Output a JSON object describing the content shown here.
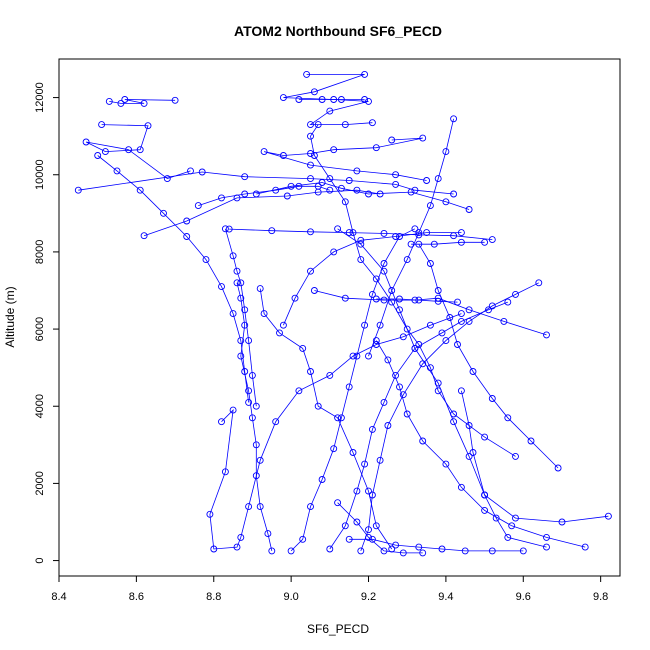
{
  "chart_data": {
    "type": "line",
    "title": "ATOM2 Northbound SF6_PECD",
    "xlabel": "SF6_PECD",
    "ylabel": "Altitude (m)",
    "xlim": [
      8.4,
      9.85
    ],
    "ylim": [
      -400,
      13000
    ],
    "x_ticks": [
      8.4,
      8.6,
      8.8,
      9.0,
      9.2,
      9.4,
      9.6,
      9.8
    ],
    "x_tick_labels": [
      "8.4",
      "8.6",
      "8.8",
      "9.0",
      "9.2",
      "9.4",
      "9.6",
      "9.8"
    ],
    "y_ticks": [
      0,
      2000,
      4000,
      6000,
      8000,
      10000,
      12000
    ],
    "y_tick_labels": [
      "0",
      "2000",
      "4000",
      "6000",
      "8000",
      "10000",
      "12000"
    ],
    "grid": false,
    "marker": "open-circle",
    "colors": {
      "series": "#0000ff",
      "axis": "#000000"
    },
    "series": [
      {
        "points": [
          [
            8.53,
            11900
          ],
          [
            8.56,
            11850
          ],
          [
            8.62,
            11850
          ],
          [
            8.57,
            11950
          ],
          [
            8.7,
            11930
          ]
        ]
      },
      {
        "points": [
          [
            8.51,
            11300
          ],
          [
            8.63,
            11270
          ],
          [
            8.61,
            10650
          ],
          [
            8.52,
            10600
          ],
          [
            8.47,
            10850
          ],
          [
            8.58,
            10650
          ],
          [
            8.68,
            9900
          ],
          [
            8.74,
            10100
          ]
        ]
      },
      {
        "points": [
          [
            8.45,
            9600
          ],
          [
            8.77,
            10070
          ],
          [
            8.88,
            9950
          ],
          [
            9.05,
            9900
          ],
          [
            9.15,
            9850
          ],
          [
            9.27,
            9750
          ],
          [
            9.32,
            9600
          ],
          [
            9.42,
            9500
          ]
        ]
      },
      {
        "points": [
          [
            8.62,
            8420
          ],
          [
            8.73,
            8800
          ],
          [
            8.86,
            9400
          ],
          [
            8.99,
            9450
          ],
          [
            9.07,
            9550
          ],
          [
            9.17,
            9600
          ],
          [
            9.23,
            9500
          ]
        ]
      },
      {
        "points": [
          [
            8.84,
            8590
          ],
          [
            8.95,
            8550
          ],
          [
            9.05,
            8520
          ],
          [
            9.15,
            8500
          ],
          [
            9.24,
            8480
          ],
          [
            9.33,
            8440
          ],
          [
            9.42,
            8420
          ],
          [
            9.52,
            8320
          ]
        ]
      },
      {
        "points": [
          [
            8.92,
            7050
          ],
          [
            8.93,
            6400
          ],
          [
            8.97,
            5900
          ],
          [
            9.03,
            5500
          ],
          [
            9.05,
            4900
          ],
          [
            9.07,
            4000
          ],
          [
            9.12,
            3700
          ],
          [
            9.16,
            2800
          ],
          [
            9.2,
            1800
          ],
          [
            9.22,
            900
          ],
          [
            9.26,
            300
          ]
        ]
      },
      {
        "points": [
          [
            8.82,
            3600
          ],
          [
            8.85,
            3900
          ],
          [
            8.83,
            2300
          ],
          [
            8.79,
            1200
          ],
          [
            8.8,
            300
          ],
          [
            8.86,
            350
          ],
          [
            8.87,
            600
          ],
          [
            8.89,
            1400
          ],
          [
            8.92,
            2600
          ],
          [
            8.96,
            3600
          ],
          [
            9.02,
            4400
          ],
          [
            9.1,
            4800
          ],
          [
            9.16,
            5300
          ],
          [
            9.22,
            5600
          ],
          [
            9.29,
            5800
          ],
          [
            9.36,
            6100
          ],
          [
            9.44,
            6400
          ]
        ]
      },
      {
        "points": [
          [
            9.58,
            2700
          ],
          [
            9.5,
            3200
          ],
          [
            9.42,
            3800
          ],
          [
            9.38,
            4400
          ],
          [
            9.36,
            5000
          ],
          [
            9.33,
            5600
          ],
          [
            9.3,
            6000
          ],
          [
            9.26,
            6700
          ],
          [
            9.22,
            7300
          ],
          [
            9.18,
            7800
          ],
          [
            9.16,
            8500
          ],
          [
            9.14,
            9300
          ],
          [
            9.1,
            9900
          ],
          [
            9.06,
            10500
          ],
          [
            9.05,
            11000
          ],
          [
            9.07,
            11300
          ]
        ]
      },
      {
        "points": [
          [
            9.66,
            5850
          ],
          [
            9.55,
            6200
          ],
          [
            9.46,
            6500
          ],
          [
            9.38,
            6800
          ],
          [
            9.32,
            6750
          ],
          [
            9.24,
            6750
          ],
          [
            9.14,
            6800
          ],
          [
            9.06,
            7000
          ]
        ]
      },
      {
        "points": [
          [
            9.76,
            350
          ],
          [
            9.66,
            600
          ],
          [
            9.57,
            900
          ],
          [
            9.5,
            1300
          ],
          [
            9.44,
            1900
          ],
          [
            9.4,
            2500
          ],
          [
            9.34,
            3100
          ],
          [
            9.3,
            3800
          ],
          [
            9.28,
            4500
          ],
          [
            9.25,
            5200
          ],
          [
            9.22,
            5700
          ]
        ]
      },
      {
        "points": [
          [
            9.82,
            1150
          ],
          [
            9.7,
            1000
          ],
          [
            9.58,
            1100
          ],
          [
            9.5,
            1700
          ],
          [
            9.46,
            2700
          ],
          [
            9.42,
            3600
          ],
          [
            9.38,
            4600
          ],
          [
            9.32,
            5500
          ],
          [
            9.28,
            6500
          ],
          [
            9.24,
            7500
          ],
          [
            9.18,
            8200
          ],
          [
            9.12,
            8600
          ]
        ]
      },
      {
        "points": [
          [
            9.69,
            2400
          ],
          [
            9.62,
            3100
          ],
          [
            9.56,
            3700
          ],
          [
            9.52,
            4200
          ],
          [
            9.47,
            4900
          ],
          [
            9.43,
            5600
          ],
          [
            9.41,
            6300
          ],
          [
            9.38,
            7000
          ],
          [
            9.36,
            7700
          ],
          [
            9.33,
            8200
          ]
        ]
      },
      {
        "points": [
          [
            9.0,
            250
          ],
          [
            9.03,
            550
          ],
          [
            9.05,
            1400
          ],
          [
            9.08,
            2100
          ],
          [
            9.11,
            2900
          ],
          [
            9.13,
            3700
          ],
          [
            9.15,
            4500
          ],
          [
            9.17,
            5300
          ],
          [
            9.19,
            6100
          ],
          [
            9.21,
            6900
          ],
          [
            9.24,
            7700
          ],
          [
            9.28,
            8400
          ],
          [
            9.32,
            8600
          ]
        ]
      },
      {
        "points": [
          [
            9.42,
            11450
          ],
          [
            9.4,
            10600
          ],
          [
            9.38,
            9900
          ],
          [
            9.36,
            9200
          ],
          [
            9.33,
            8500
          ],
          [
            9.3,
            7800
          ],
          [
            9.26,
            7000
          ],
          [
            9.23,
            6100
          ],
          [
            9.2,
            5300
          ]
        ]
      },
      {
        "points": [
          [
            9.04,
            12600
          ],
          [
            9.19,
            12600
          ],
          [
            9.06,
            12150
          ],
          [
            8.98,
            12000
          ],
          [
            9.11,
            11950
          ],
          [
            9.2,
            11900
          ],
          [
            9.1,
            11650
          ],
          [
            9.05,
            11300
          ],
          [
            9.14,
            11300
          ],
          [
            9.21,
            11350
          ]
        ]
      },
      {
        "points": [
          [
            9.26,
            10900
          ],
          [
            9.34,
            10950
          ],
          [
            9.22,
            10700
          ],
          [
            9.11,
            10650
          ],
          [
            9.05,
            10550
          ],
          [
            8.98,
            10500
          ],
          [
            8.93,
            10600
          ],
          [
            9.05,
            10250
          ],
          [
            9.17,
            10100
          ],
          [
            9.27,
            10000
          ],
          [
            9.35,
            9850
          ]
        ]
      },
      {
        "points": [
          [
            8.91,
            9500
          ],
          [
            9.0,
            9700
          ],
          [
            9.08,
            9800
          ],
          [
            9.13,
            9650
          ],
          [
            9.2,
            9500
          ],
          [
            9.31,
            9550
          ],
          [
            9.4,
            9300
          ],
          [
            9.46,
            9100
          ]
        ]
      },
      {
        "points": [
          [
            8.98,
            6100
          ],
          [
            9.01,
            6800
          ],
          [
            9.05,
            7500
          ],
          [
            9.11,
            8000
          ],
          [
            9.18,
            8300
          ],
          [
            9.27,
            8400
          ],
          [
            9.35,
            8500
          ],
          [
            9.44,
            8500
          ]
        ]
      },
      {
        "points": [
          [
            9.56,
            6700
          ],
          [
            9.51,
            6500
          ],
          [
            9.44,
            6200
          ],
          [
            9.39,
            5900
          ],
          [
            9.32,
            5500
          ],
          [
            9.27,
            4800
          ],
          [
            9.24,
            4100
          ],
          [
            9.21,
            3400
          ],
          [
            9.19,
            2500
          ],
          [
            9.17,
            1800
          ],
          [
            9.14,
            900
          ],
          [
            9.1,
            300
          ]
        ]
      },
      {
        "points": [
          [
            9.64,
            7200
          ],
          [
            9.58,
            6900
          ],
          [
            9.52,
            6600
          ],
          [
            9.46,
            6200
          ],
          [
            9.4,
            5700
          ],
          [
            9.34,
            5100
          ],
          [
            9.29,
            4300
          ],
          [
            9.25,
            3500
          ],
          [
            9.23,
            2600
          ],
          [
            9.21,
            1700
          ],
          [
            9.2,
            800
          ],
          [
            9.18,
            250
          ]
        ]
      },
      {
        "points": [
          [
            8.86,
            7200
          ],
          [
            8.87,
            6800
          ],
          [
            8.88,
            6100
          ],
          [
            8.87,
            5300
          ],
          [
            8.89,
            4400
          ],
          [
            8.9,
            3700
          ],
          [
            8.91,
            3000
          ],
          [
            8.91,
            2200
          ],
          [
            8.92,
            1400
          ],
          [
            8.94,
            700
          ],
          [
            8.95,
            250
          ]
        ]
      },
      {
        "points": [
          [
            8.83,
            8600
          ],
          [
            8.85,
            7900
          ],
          [
            8.86,
            7500
          ],
          [
            8.87,
            7200
          ],
          [
            8.88,
            6500
          ],
          [
            8.89,
            5700
          ],
          [
            8.9,
            4800
          ],
          [
            8.91,
            4000
          ]
        ]
      },
      {
        "points": [
          [
            8.5,
            10500
          ],
          [
            8.55,
            10100
          ],
          [
            8.61,
            9600
          ],
          [
            8.67,
            9000
          ],
          [
            8.73,
            8400
          ],
          [
            8.78,
            7800
          ],
          [
            8.82,
            7100
          ],
          [
            8.85,
            6400
          ],
          [
            8.87,
            5700
          ],
          [
            8.88,
            4900
          ],
          [
            8.89,
            4100
          ]
        ]
      },
      {
        "points": [
          [
            8.76,
            9200
          ],
          [
            8.82,
            9400
          ],
          [
            8.88,
            9500
          ],
          [
            8.96,
            9600
          ],
          [
            9.02,
            9700
          ],
          [
            9.07,
            9700
          ],
          [
            9.1,
            9600
          ]
        ]
      },
      {
        "points": [
          [
            9.31,
            8200
          ],
          [
            9.37,
            8200
          ],
          [
            9.44,
            8250
          ],
          [
            9.5,
            8250
          ]
        ]
      },
      {
        "points": [
          [
            9.22,
            6780
          ],
          [
            9.28,
            6780
          ],
          [
            9.33,
            6750
          ],
          [
            9.38,
            6720
          ],
          [
            9.43,
            6700
          ]
        ]
      },
      {
        "points": [
          [
            9.02,
            11950
          ],
          [
            9.08,
            11950
          ],
          [
            9.13,
            11950
          ],
          [
            9.19,
            11950
          ]
        ]
      },
      {
        "points": [
          [
            9.15,
            550
          ],
          [
            9.21,
            550
          ],
          [
            9.27,
            400
          ],
          [
            9.33,
            350
          ],
          [
            9.39,
            300
          ],
          [
            9.45,
            250
          ],
          [
            9.52,
            250
          ],
          [
            9.6,
            250
          ]
        ]
      },
      {
        "points": [
          [
            9.12,
            1500
          ],
          [
            9.17,
            1000
          ],
          [
            9.2,
            600
          ],
          [
            9.24,
            250
          ],
          [
            9.29,
            200
          ],
          [
            9.34,
            200
          ]
        ]
      },
      {
        "points": [
          [
            9.44,
            4400
          ],
          [
            9.46,
            3500
          ],
          [
            9.47,
            2800
          ],
          [
            9.5,
            1700
          ],
          [
            9.53,
            1100
          ],
          [
            9.56,
            600
          ],
          [
            9.66,
            350
          ]
        ]
      }
    ]
  }
}
